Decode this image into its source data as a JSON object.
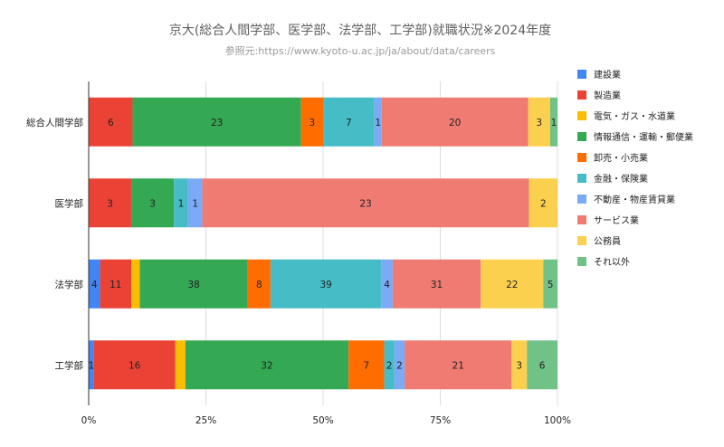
{
  "chart_data": {
    "type": "bar",
    "orientation": "horizontal",
    "stacking": "percent",
    "title": "京大(総合人間学部、医学部、法学部、工学部)就職状況※2024年度",
    "subtitle": "参照元:https://www.kyoto-u.ac.jp/ja/about/data/careers",
    "categories": [
      "総合人間学部",
      "医学部",
      "法学部",
      "工学部"
    ],
    "series": [
      {
        "name": "建設業",
        "color": "#4285f4",
        "values": [
          0,
          0,
          4,
          1
        ]
      },
      {
        "name": "製造業",
        "color": "#ea4335",
        "values": [
          6,
          3,
          11,
          16
        ]
      },
      {
        "name": "電気・ガス・水道業",
        "color": "#fbbc04",
        "values": [
          0,
          0,
          3,
          2
        ]
      },
      {
        "name": "情報通信・運輸・郵便業",
        "color": "#34a853",
        "values": [
          23,
          3,
          38,
          32
        ]
      },
      {
        "name": "卸売・小売業",
        "color": "#ff6d01",
        "values": [
          3,
          0,
          8,
          7
        ]
      },
      {
        "name": "金融・保険業",
        "color": "#46bdc6",
        "values": [
          7,
          1,
          39,
          2
        ]
      },
      {
        "name": "不動産・物産賃貸業",
        "color": "#7baaf7",
        "values": [
          1,
          1,
          4,
          2
        ]
      },
      {
        "name": "サービス業",
        "color": "#f07b72",
        "values": [
          20,
          23,
          31,
          21
        ]
      },
      {
        "name": "公務員",
        "color": "#fcd04f",
        "values": [
          3,
          2,
          22,
          3
        ]
      },
      {
        "name": "それ以外",
        "color": "#71c287",
        "values": [
          1,
          0,
          5,
          6
        ]
      }
    ],
    "hidden_labels": [
      {
        "category": "法学部",
        "series": "電気・ガス・水道業"
      },
      {
        "category": "工学部",
        "series": "電気・ガス・水道業"
      }
    ],
    "x_ticks": [
      "0%",
      "25%",
      "50%",
      "75%",
      "100%"
    ],
    "xlim": [
      0,
      100
    ],
    "grid": true,
    "legend_position": "right"
  }
}
